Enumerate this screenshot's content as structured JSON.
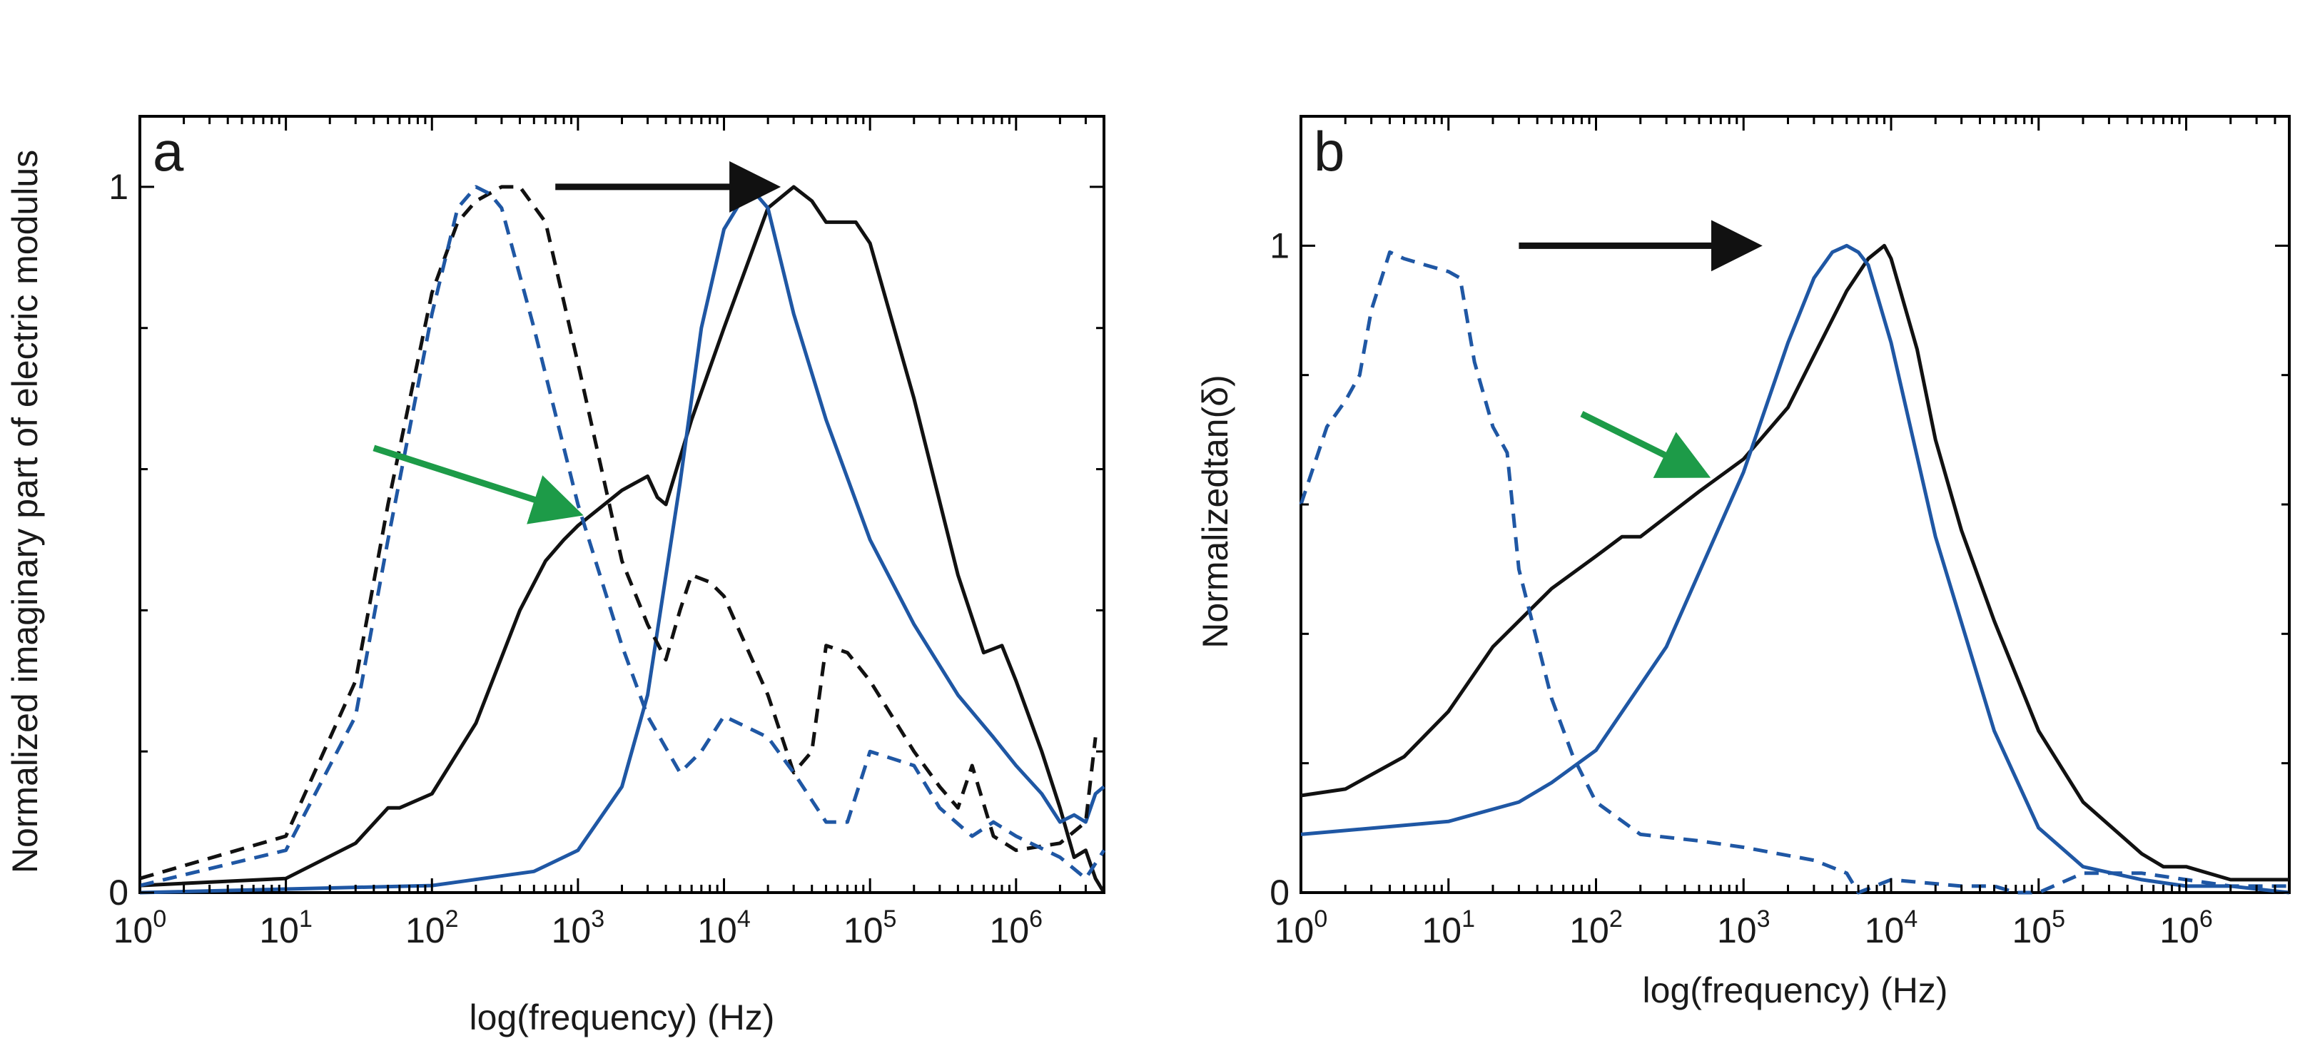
{
  "colors": {
    "black": "#111111",
    "blue": "#1f57a4",
    "green": "#1d9b48",
    "frame": "#000000"
  },
  "chart_data": [
    {
      "panel_label": "a",
      "type": "line",
      "xlabel": "log(frequency) (Hz)",
      "ylabel": "Normalized imaginary part of electric modulus",
      "x_scale": "log",
      "xlim": [
        1,
        4000000
      ],
      "ylim": [
        0,
        1.1
      ],
      "x_ticks": [
        {
          "value": 1,
          "base": "10",
          "exp": "0"
        },
        {
          "value": 10,
          "base": "10",
          "exp": "1"
        },
        {
          "value": 100,
          "base": "10",
          "exp": "2"
        },
        {
          "value": 1000,
          "base": "10",
          "exp": "3"
        },
        {
          "value": 10000,
          "base": "10",
          "exp": "4"
        },
        {
          "value": 100000,
          "base": "10",
          "exp": "5"
        },
        {
          "value": 1000000,
          "base": "10",
          "exp": "6"
        }
      ],
      "y_ticks": [
        {
          "value": 0,
          "label": "0"
        },
        {
          "value": 1,
          "label": "1"
        }
      ],
      "y_minor_ticks": [
        0.2,
        0.4,
        0.6,
        0.8
      ],
      "series": [
        {
          "color": "black",
          "dash": "solid",
          "x": [
            1,
            10,
            30,
            50,
            60,
            100,
            200,
            400,
            600,
            800,
            1000,
            2000,
            3000,
            3500,
            4000,
            6000,
            10000,
            20000,
            30000,
            40000,
            50000,
            60000,
            80000,
            100000,
            200000,
            400000,
            600000,
            800000,
            1000000,
            1500000,
            2000000,
            2500000,
            3000000,
            3500000,
            4000000
          ],
          "y": [
            0.01,
            0.02,
            0.07,
            0.12,
            0.12,
            0.14,
            0.24,
            0.4,
            0.47,
            0.5,
            0.52,
            0.57,
            0.59,
            0.56,
            0.55,
            0.67,
            0.8,
            0.97,
            1.0,
            0.98,
            0.95,
            0.95,
            0.95,
            0.92,
            0.7,
            0.45,
            0.34,
            0.35,
            0.3,
            0.2,
            0.12,
            0.05,
            0.06,
            0.02,
            0.0
          ]
        },
        {
          "color": "blue",
          "dash": "solid",
          "x": [
            1,
            100,
            500,
            1000,
            2000,
            3000,
            5000,
            7000,
            10000,
            15000,
            20000,
            30000,
            50000,
            100000,
            200000,
            400000,
            700000,
            1000000,
            1500000,
            2000000,
            2500000,
            3000000,
            3500000,
            4000000
          ],
          "y": [
            0.0,
            0.01,
            0.03,
            0.06,
            0.15,
            0.28,
            0.58,
            0.8,
            0.94,
            1.0,
            0.97,
            0.82,
            0.67,
            0.5,
            0.38,
            0.28,
            0.22,
            0.18,
            0.14,
            0.1,
            0.11,
            0.1,
            0.14,
            0.15
          ]
        },
        {
          "color": "black",
          "dash": "dashed",
          "x": [
            1,
            10,
            30,
            50,
            100,
            150,
            200,
            300,
            400,
            600,
            1000,
            2000,
            3000,
            4000,
            5000,
            6000,
            8000,
            10000,
            20000,
            30000,
            40000,
            50000,
            70000,
            100000,
            200000,
            300000,
            400000,
            500000,
            700000,
            1000000,
            2000000,
            3000000,
            3500000
          ],
          "y": [
            0.02,
            0.08,
            0.3,
            0.55,
            0.85,
            0.95,
            0.98,
            1.0,
            1.0,
            0.95,
            0.75,
            0.47,
            0.38,
            0.33,
            0.4,
            0.45,
            0.44,
            0.42,
            0.28,
            0.17,
            0.2,
            0.35,
            0.34,
            0.3,
            0.2,
            0.15,
            0.12,
            0.18,
            0.08,
            0.06,
            0.07,
            0.1,
            0.22
          ]
        },
        {
          "color": "blue",
          "dash": "dashed",
          "x": [
            1,
            10,
            30,
            50,
            100,
            150,
            200,
            250,
            300,
            500,
            1000,
            2000,
            3000,
            5000,
            7000,
            10000,
            20000,
            30000,
            50000,
            70000,
            100000,
            200000,
            300000,
            500000,
            700000,
            1000000,
            2000000,
            3000000,
            4000000
          ],
          "y": [
            0.01,
            0.06,
            0.25,
            0.5,
            0.82,
            0.97,
            1.0,
            0.99,
            0.97,
            0.8,
            0.55,
            0.35,
            0.25,
            0.17,
            0.2,
            0.25,
            0.22,
            0.17,
            0.1,
            0.1,
            0.2,
            0.18,
            0.12,
            0.08,
            0.1,
            0.08,
            0.05,
            0.02,
            0.06
          ]
        }
      ],
      "annotations": [
        {
          "kind": "arrow",
          "color": "black",
          "from": [
            700,
            1.0
          ],
          "to": [
            20000,
            1.0
          ]
        },
        {
          "kind": "arrow",
          "color": "green",
          "from": [
            40,
            0.63
          ],
          "to": [
            900,
            0.54
          ]
        }
      ]
    },
    {
      "panel_label": "b",
      "type": "line",
      "xlabel": "log(frequency) (Hz)",
      "ylabel": "Normalizedtan(δ)",
      "x_scale": "log",
      "xlim": [
        1,
        5000000
      ],
      "ylim": [
        0,
        1.2
      ],
      "x_ticks": [
        {
          "value": 1,
          "base": "10",
          "exp": "0"
        },
        {
          "value": 10,
          "base": "10",
          "exp": "1"
        },
        {
          "value": 100,
          "base": "10",
          "exp": "2"
        },
        {
          "value": 1000,
          "base": "10",
          "exp": "3"
        },
        {
          "value": 10000,
          "base": "10",
          "exp": "4"
        },
        {
          "value": 100000,
          "base": "10",
          "exp": "5"
        },
        {
          "value": 1000000,
          "base": "10",
          "exp": "6"
        }
      ],
      "y_ticks": [
        {
          "value": 0,
          "label": "0"
        },
        {
          "value": 1,
          "label": "1"
        }
      ],
      "y_minor_ticks": [
        0.2,
        0.4,
        0.6,
        0.8
      ],
      "series": [
        {
          "color": "black",
          "dash": "solid",
          "x": [
            1,
            2,
            5,
            10,
            20,
            50,
            100,
            150,
            200,
            500,
            1000,
            2000,
            3000,
            5000,
            7000,
            9000,
            10000,
            15000,
            20000,
            30000,
            50000,
            100000,
            200000,
            500000,
            700000,
            1000000,
            2000000,
            5000000
          ],
          "y": [
            0.15,
            0.16,
            0.21,
            0.28,
            0.38,
            0.47,
            0.52,
            0.55,
            0.55,
            0.62,
            0.67,
            0.75,
            0.83,
            0.93,
            0.98,
            1.0,
            0.98,
            0.84,
            0.7,
            0.56,
            0.42,
            0.25,
            0.14,
            0.06,
            0.04,
            0.04,
            0.02,
            0.02
          ]
        },
        {
          "color": "blue",
          "dash": "solid",
          "x": [
            1,
            10,
            30,
            50,
            100,
            300,
            1000,
            2000,
            3000,
            4000,
            5000,
            6000,
            7000,
            10000,
            20000,
            50000,
            100000,
            200000,
            500000,
            1000000,
            2000000,
            5000000
          ],
          "y": [
            0.09,
            0.11,
            0.14,
            0.17,
            0.22,
            0.38,
            0.65,
            0.85,
            0.95,
            0.99,
            1.0,
            0.99,
            0.97,
            0.85,
            0.55,
            0.25,
            0.1,
            0.04,
            0.02,
            0.01,
            0.01,
            0.0
          ]
        },
        {
          "color": "blue",
          "dash": "dashed",
          "x": [
            1,
            1.5,
            2,
            2.5,
            3,
            4,
            5,
            7,
            10,
            12,
            15,
            20,
            25,
            30,
            50,
            70,
            100,
            200,
            500,
            1000,
            3000,
            5000,
            6000,
            10000,
            30000,
            50000,
            70000,
            100000,
            200000,
            500000,
            1000000,
            2000000,
            5000000
          ],
          "y": [
            0.6,
            0.72,
            0.76,
            0.8,
            0.9,
            0.99,
            0.98,
            0.97,
            0.96,
            0.95,
            0.82,
            0.72,
            0.68,
            0.5,
            0.3,
            0.21,
            0.14,
            0.09,
            0.08,
            0.07,
            0.05,
            0.03,
            0.0,
            0.02,
            0.01,
            0.01,
            0.0,
            0.0,
            0.03,
            0.03,
            0.02,
            0.01,
            0.01
          ]
        }
      ],
      "annotations": [
        {
          "kind": "arrow",
          "color": "black",
          "from": [
            30,
            1.0
          ],
          "to": [
            1100,
            1.0
          ]
        },
        {
          "kind": "arrow",
          "color": "green",
          "from": [
            80,
            0.74
          ],
          "to": [
            500,
            0.65
          ]
        }
      ]
    }
  ]
}
